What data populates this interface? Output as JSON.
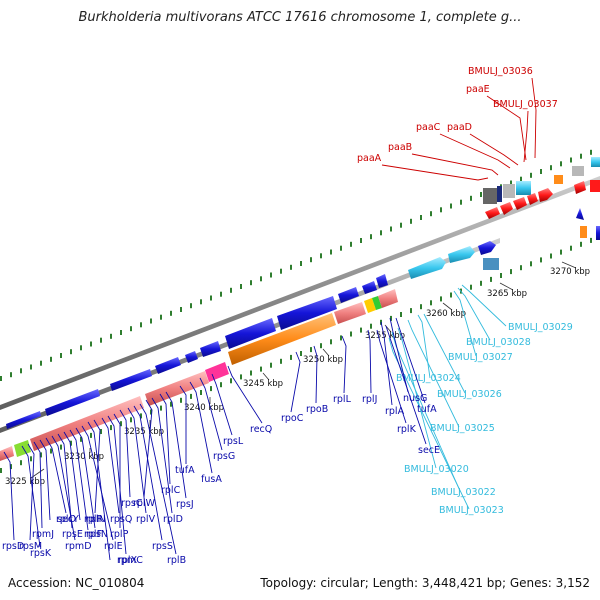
{
  "title": "Burkholderia multivorans ATCC 17616 chromosome 1, complete g...",
  "accession": "Accession: NC_010804",
  "topology": "Topology: circular; Length: 3,448,421 bp; Genes: 3,152",
  "colors": {
    "backbone": "#8f8f8f",
    "tick": "#2e7d2e",
    "forward_gene": "#1515d8",
    "reverse_gene": "#f08080",
    "rna_pol": "#ff8c1a",
    "highlight_pink": "#ff3399",
    "paa_red": "#ff1a1a",
    "light_blue": "#38c7ee",
    "label_red": "#cc0000",
    "label_cyan": "#33bbdd",
    "label_blue": "#0a0aaa"
  },
  "scale_labels": [
    {
      "text": "3225 kbp"
    },
    {
      "text": "3230 kbp"
    },
    {
      "text": "3235 kbp"
    },
    {
      "text": "3240 kbp"
    },
    {
      "text": "3245 kbp"
    },
    {
      "text": "3250 kbp"
    },
    {
      "text": "3255 kbp"
    },
    {
      "text": "3260 kbp"
    },
    {
      "text": "3265 kbp"
    },
    {
      "text": "3270 kbp"
    }
  ],
  "gene_labels_red": [
    "BMULJ_03036",
    "paaE",
    "BMULJ_03037",
    "paaC",
    "paaD",
    "paaB",
    "paaA"
  ],
  "gene_labels_cyan": [
    "BMULJ_03029",
    "BMULJ_03028",
    "BMULJ_03027",
    "BMULJ_03024",
    "BMULJ_03026",
    "BMULJ_03025",
    "BMULJ_03020",
    "BMULJ_03022",
    "BMULJ_03023"
  ],
  "gene_labels_blue": [
    "nusG",
    "tufA",
    "rplA",
    "rplK",
    "secE",
    "rplJ",
    "rplL",
    "rpoB",
    "rpoC",
    "recQ",
    "rpsL",
    "rpsG",
    "fusA",
    "tufA",
    "rpsJ",
    "rplC",
    "rplD",
    "rplW",
    "rplB",
    "rpsS",
    "rplV",
    "rpsC",
    "rplP",
    "rpmC",
    "rpsQ",
    "rplN",
    "rplX",
    "rplE",
    "rpsN",
    "rplF",
    "rplR",
    "rpsE",
    "rpmD",
    "rplO",
    "secY",
    "rpmJ",
    "rpsM",
    "rpsK",
    "rpsD"
  ]
}
